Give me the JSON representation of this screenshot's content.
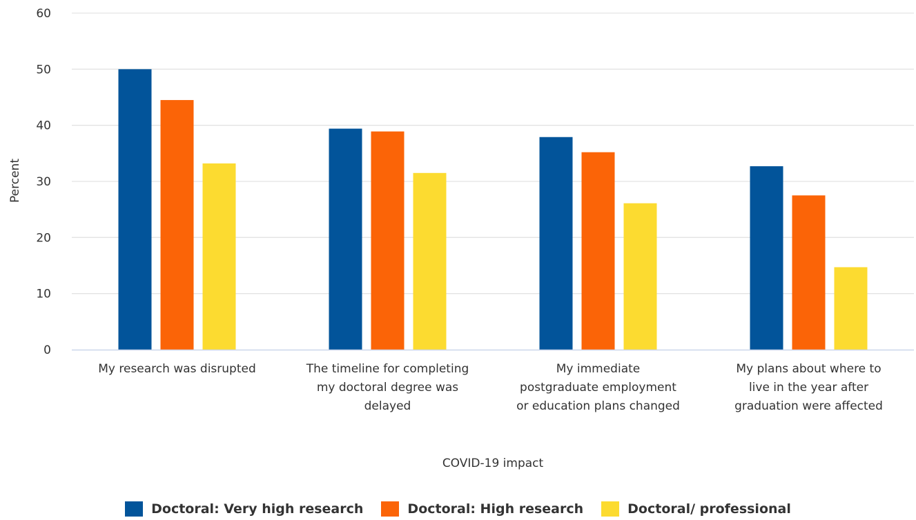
{
  "chart_data": {
    "type": "bar",
    "title": "",
    "xlabel": "COVID-19 impact",
    "ylabel": "Percent",
    "ylim": [
      0,
      60
    ],
    "yticks": [
      0,
      10,
      20,
      30,
      40,
      50,
      60
    ],
    "grid": true,
    "legend_position": "bottom",
    "categories": [
      [
        "My research was disrupted"
      ],
      [
        "The timeline for completing",
        "my doctoral degree was",
        "delayed"
      ],
      [
        "My immediate",
        "postgraduate employment",
        "or education plans changed"
      ],
      [
        "My plans about where to",
        "live in the year after",
        "graduation were affected"
      ]
    ],
    "series": [
      {
        "name": "Doctoral: Very high research",
        "color": "#02549A",
        "values": [
          50.0,
          39.4,
          37.9,
          32.7
        ]
      },
      {
        "name": "Doctoral: High research",
        "color": "#FB6407",
        "values": [
          44.5,
          38.9,
          35.2,
          27.5
        ]
      },
      {
        "name": "Doctoral/ professional",
        "color": "#FCDB30",
        "values": [
          33.2,
          31.5,
          26.1,
          14.7
        ]
      }
    ]
  }
}
